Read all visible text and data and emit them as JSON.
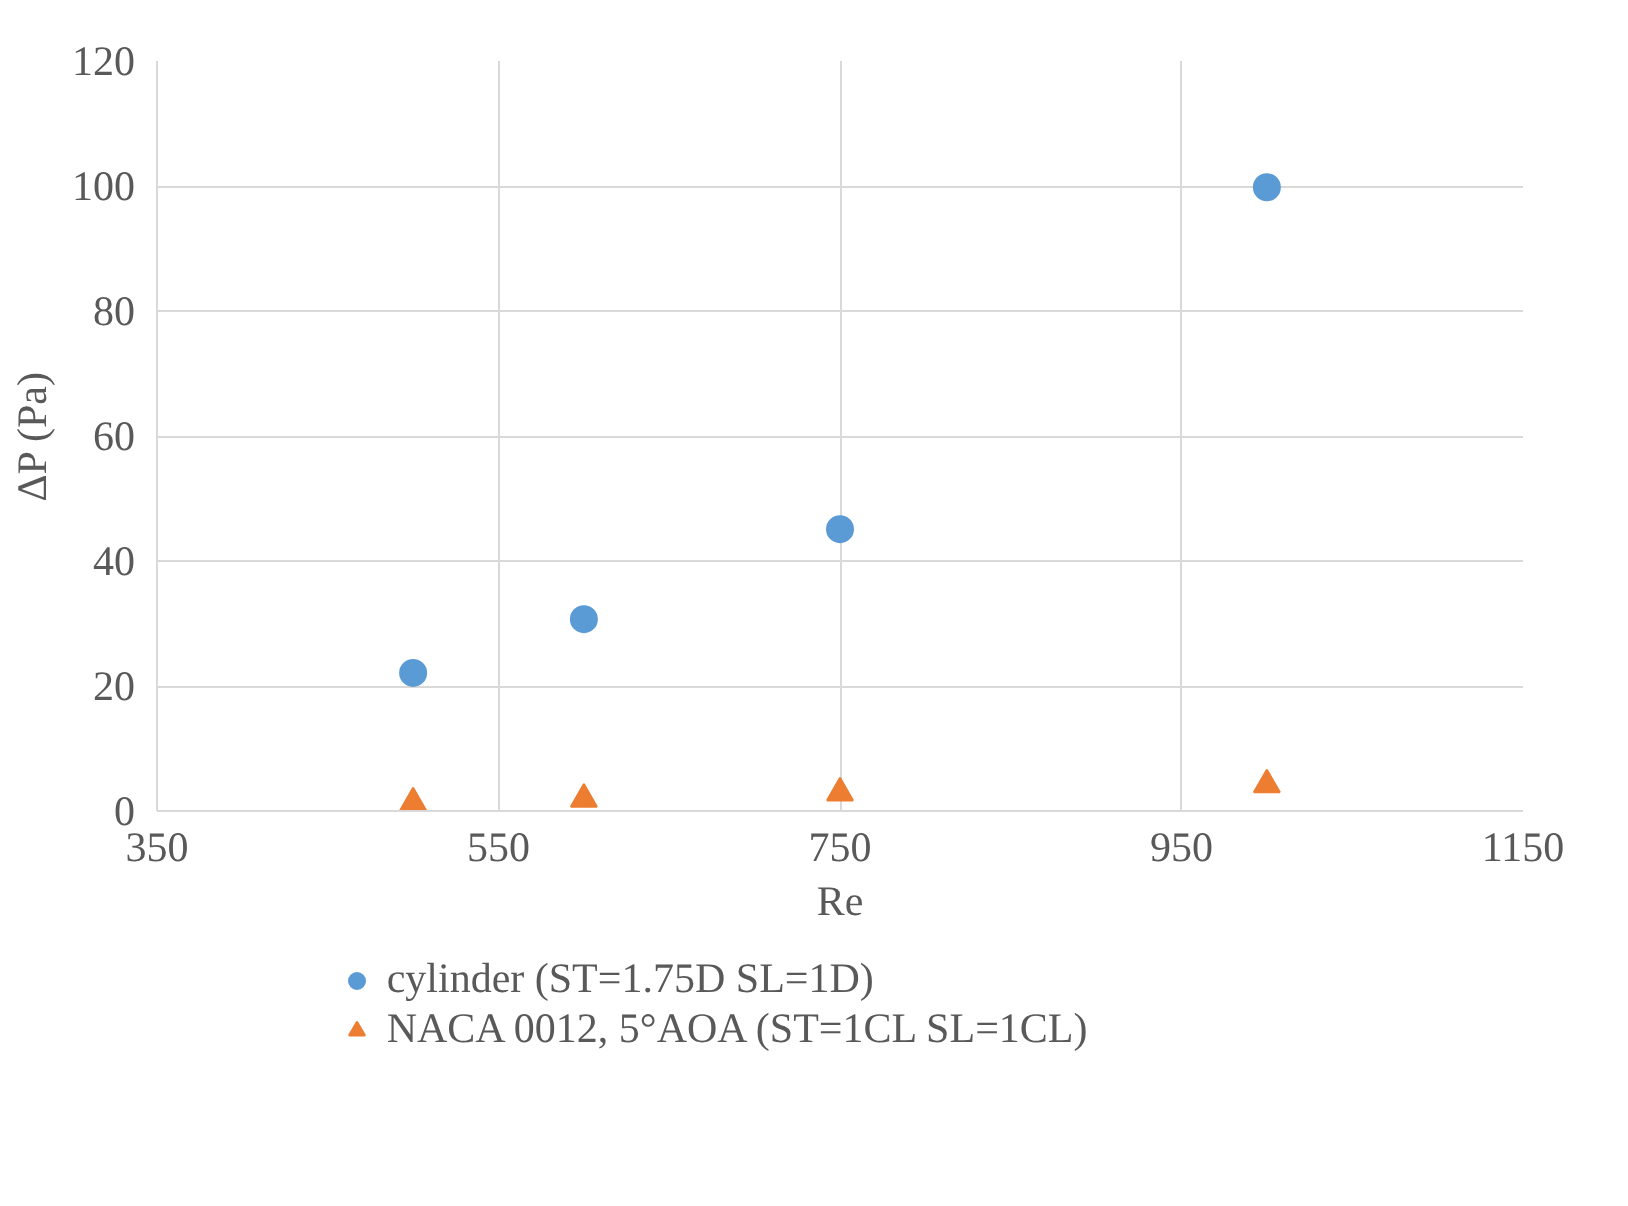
{
  "chart_data": {
    "type": "scatter",
    "xlabel": "Re",
    "ylabel": "ΔP (Pa)",
    "xlim": [
      350,
      1150
    ],
    "xticks": [
      350,
      550,
      750,
      950,
      1150
    ],
    "ylim": [
      0,
      120
    ],
    "yticks": [
      0,
      20,
      40,
      60,
      80,
      100,
      120
    ],
    "grid": true,
    "legend": "bottom",
    "series": [
      {
        "name": "cylinder (ST=1.75D SL=1D)",
        "color": "#5b9bd5",
        "marker": "circle",
        "x": [
          500,
          600,
          750,
          1000
        ],
        "values": [
          22.1,
          30.7,
          45.1,
          99.8
        ]
      },
      {
        "name": "NACA 0012, 5°AOA (ST=1CL SL=1CL)",
        "color": "#ed7d31",
        "marker": "triangle",
        "x": [
          500,
          600,
          750,
          1000
        ],
        "values": [
          1.3,
          1.9,
          2.9,
          4.2
        ]
      }
    ]
  }
}
